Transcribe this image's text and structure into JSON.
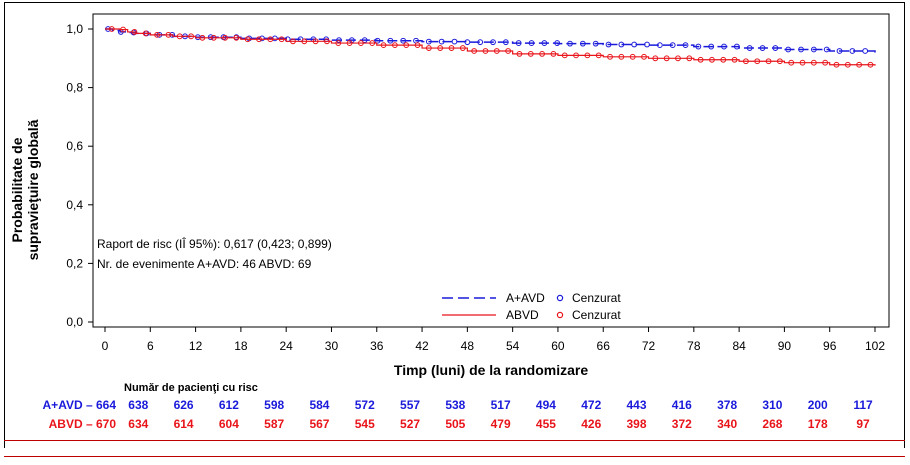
{
  "chart_data": {
    "type": "line",
    "title": "",
    "xlabel": "Timp (luni) de la randomizare",
    "ylabel_line1": "Probabilitate de",
    "ylabel_line2": "supravieţuire globală",
    "xlim": [
      0,
      102
    ],
    "ylim": [
      0,
      1
    ],
    "x_ticks": [
      0,
      6,
      12,
      18,
      24,
      30,
      36,
      42,
      48,
      54,
      60,
      66,
      72,
      78,
      84,
      90,
      96,
      102
    ],
    "y_ticks": [
      {
        "value": 0.0,
        "label": "0,0"
      },
      {
        "value": 0.2,
        "label": "0,2"
      },
      {
        "value": 0.4,
        "label": "0,4"
      },
      {
        "value": 0.6,
        "label": "0,6"
      },
      {
        "value": 0.8,
        "label": "0,8"
      },
      {
        "value": 1.0,
        "label": "1,0"
      }
    ],
    "annotations": [
      "Raport de risc (IÎ 95%): 0,617 (0,423; 0,899)",
      "Nr. de evenimente A+AVD: 46 ABVD: 69"
    ],
    "legend_placement": "bottom-right",
    "series": [
      {
        "name": "A+AVD",
        "censor_label": "Cenzurat",
        "color": "#1a1adb",
        "dash": "dashed",
        "x": [
          0,
          1,
          2,
          3,
          4,
          6,
          9,
          12,
          18,
          24,
          30,
          36,
          42,
          48,
          54,
          60,
          66,
          72,
          78,
          84,
          90,
          96,
          102
        ],
        "y": [
          1.0,
          0.995,
          0.99,
          0.988,
          0.985,
          0.98,
          0.975,
          0.972,
          0.968,
          0.965,
          0.962,
          0.96,
          0.957,
          0.955,
          0.952,
          0.95,
          0.947,
          0.945,
          0.94,
          0.935,
          0.93,
          0.925,
          0.92
        ]
      },
      {
        "name": "ABVD",
        "censor_label": "Cenzurat",
        "color": "#e8141a",
        "dash": "solid",
        "x": [
          0,
          1,
          2,
          3,
          4,
          6,
          9,
          12,
          18,
          24,
          30,
          36,
          42,
          48,
          54,
          60,
          66,
          72,
          78,
          84,
          90,
          96,
          102
        ],
        "y": [
          1.0,
          1.0,
          0.998,
          0.99,
          0.985,
          0.98,
          0.975,
          0.97,
          0.965,
          0.958,
          0.952,
          0.945,
          0.935,
          0.925,
          0.915,
          0.91,
          0.905,
          0.9,
          0.895,
          0.89,
          0.885,
          0.878,
          0.875
        ]
      }
    ],
    "risk_table": {
      "title": "Număr de pacienţi cu risc",
      "rows": [
        {
          "label": "A+AVD – 664",
          "color": "#1a1adb",
          "values": [
            638,
            626,
            612,
            598,
            584,
            572,
            557,
            538,
            517,
            494,
            472,
            443,
            416,
            378,
            310,
            200,
            117
          ]
        },
        {
          "label": "ABVD – 670",
          "color": "#e8141a",
          "values": [
            634,
            614,
            604,
            587,
            567,
            545,
            527,
            505,
            479,
            455,
            426,
            398,
            372,
            340,
            268,
            178,
            97
          ]
        }
      ]
    }
  }
}
